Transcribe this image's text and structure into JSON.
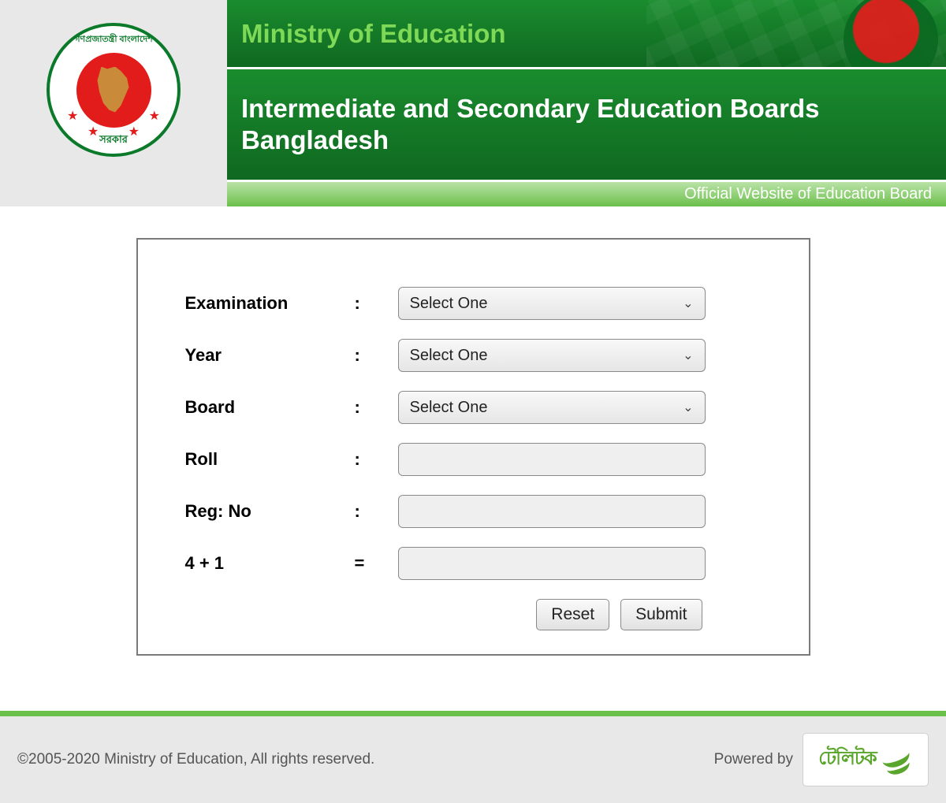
{
  "header": {
    "ministry_title": "Ministry of Education",
    "board_title": "Intermediate and Secondary Education Boards Bangladesh",
    "tagline": "Official Website of Education Board",
    "logo_top_text": "গণপ্রজাতন্ত্রী বাংলাদেশ",
    "logo_bottom_text": "সরকার"
  },
  "form": {
    "fields": {
      "examination": {
        "label": "Examination",
        "sep": ":",
        "value": "Select One",
        "type": "select"
      },
      "year": {
        "label": "Year",
        "sep": ":",
        "value": "Select One",
        "type": "select"
      },
      "board": {
        "label": "Board",
        "sep": ":",
        "value": "Select One",
        "type": "select"
      },
      "roll": {
        "label": "Roll",
        "sep": ":",
        "value": "",
        "type": "input"
      },
      "regno": {
        "label": "Reg: No",
        "sep": ":",
        "value": "",
        "type": "input"
      },
      "captcha": {
        "label": "4 + 1",
        "sep": "=",
        "value": "",
        "type": "input"
      }
    },
    "buttons": {
      "reset": "Reset",
      "submit": "Submit"
    }
  },
  "footer": {
    "copyright": "©2005-2020 Ministry of Education, All rights reserved.",
    "powered_by_label": "Powered by",
    "teletalk_text": "টেলিটক"
  },
  "colors": {
    "header_green_light": "#1a8c2e",
    "header_green_dark": "#0f6820",
    "ministry_title_color": "#7ed957",
    "subbar_gradient_top": "#b9e3a7",
    "subbar_gradient_bottom": "#6cbf4b",
    "logo_red": "#e21b1b",
    "logo_green": "#0a7a2a",
    "footer_bg": "#e8e8e8",
    "footer_sep": "#6ac04a",
    "teletalk_green": "#5aa52c",
    "form_border": "#7a7a7a"
  }
}
